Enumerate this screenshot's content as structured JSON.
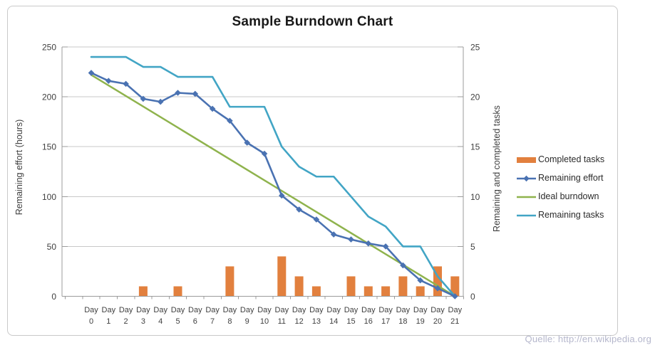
{
  "title": "Sample Burndown Chart",
  "watermark": "Quelle: http://en.wikipedia.org",
  "colors": {
    "bar_orange": "#e2803e",
    "effort_blue": "#4a72b2",
    "ideal_green": "#8fb34d",
    "tasks_teal": "#42a5c5",
    "gridline": "#c8c8c8",
    "axis_line": "#9b9b9b",
    "tick_text": "#3f3f3f",
    "title_text": "#191919",
    "watermark_text": "#b5b7cc"
  },
  "chart_data": {
    "type": "combo-bar-line",
    "title": "Sample Burndown Chart",
    "category_prefix": "Day",
    "categories": [
      0,
      1,
      2,
      3,
      4,
      5,
      6,
      7,
      8,
      9,
      10,
      11,
      12,
      13,
      14,
      15,
      16,
      17,
      18,
      19,
      20,
      21
    ],
    "left_axis": {
      "title": "Remaining effort (hours)",
      "ticks": [
        0,
        50,
        100,
        150,
        200,
        250
      ],
      "range": [
        0,
        250
      ]
    },
    "right_axis": {
      "title": "Remaining and completed tasks",
      "ticks": [
        0,
        5,
        10,
        15,
        20,
        25
      ],
      "range": [
        0,
        25
      ]
    },
    "grid": "horizontal",
    "legend_position": "right",
    "series": [
      {
        "name": "Completed tasks",
        "type": "bar",
        "axis": "right",
        "color": "#e2803e",
        "values": [
          0,
          0,
          0,
          1,
          0,
          1,
          0,
          0,
          3,
          0,
          0,
          4,
          2,
          1,
          0,
          2,
          1,
          1,
          2,
          1,
          3,
          2
        ]
      },
      {
        "name": "Remaining effort",
        "type": "line",
        "marker": "diamond",
        "axis": "left",
        "color": "#4a72b2",
        "values": [
          224,
          216,
          213,
          198,
          195,
          204,
          203,
          188,
          176,
          154,
          143,
          101,
          87,
          77,
          62,
          57,
          53,
          50,
          31,
          16,
          8,
          0
        ]
      },
      {
        "name": "Ideal burndown",
        "type": "line",
        "marker": "none",
        "axis": "left",
        "shape": "linear",
        "color": "#8fb34d",
        "start": 222,
        "end": 0
      },
      {
        "name": "Remaining tasks",
        "type": "line",
        "marker": "none",
        "axis": "right",
        "color": "#42a5c5",
        "values": [
          24,
          24,
          24,
          23,
          23,
          22,
          22,
          22,
          19,
          19,
          19,
          15,
          13,
          12,
          12,
          10,
          8,
          7,
          5,
          5,
          2,
          0
        ]
      }
    ]
  }
}
